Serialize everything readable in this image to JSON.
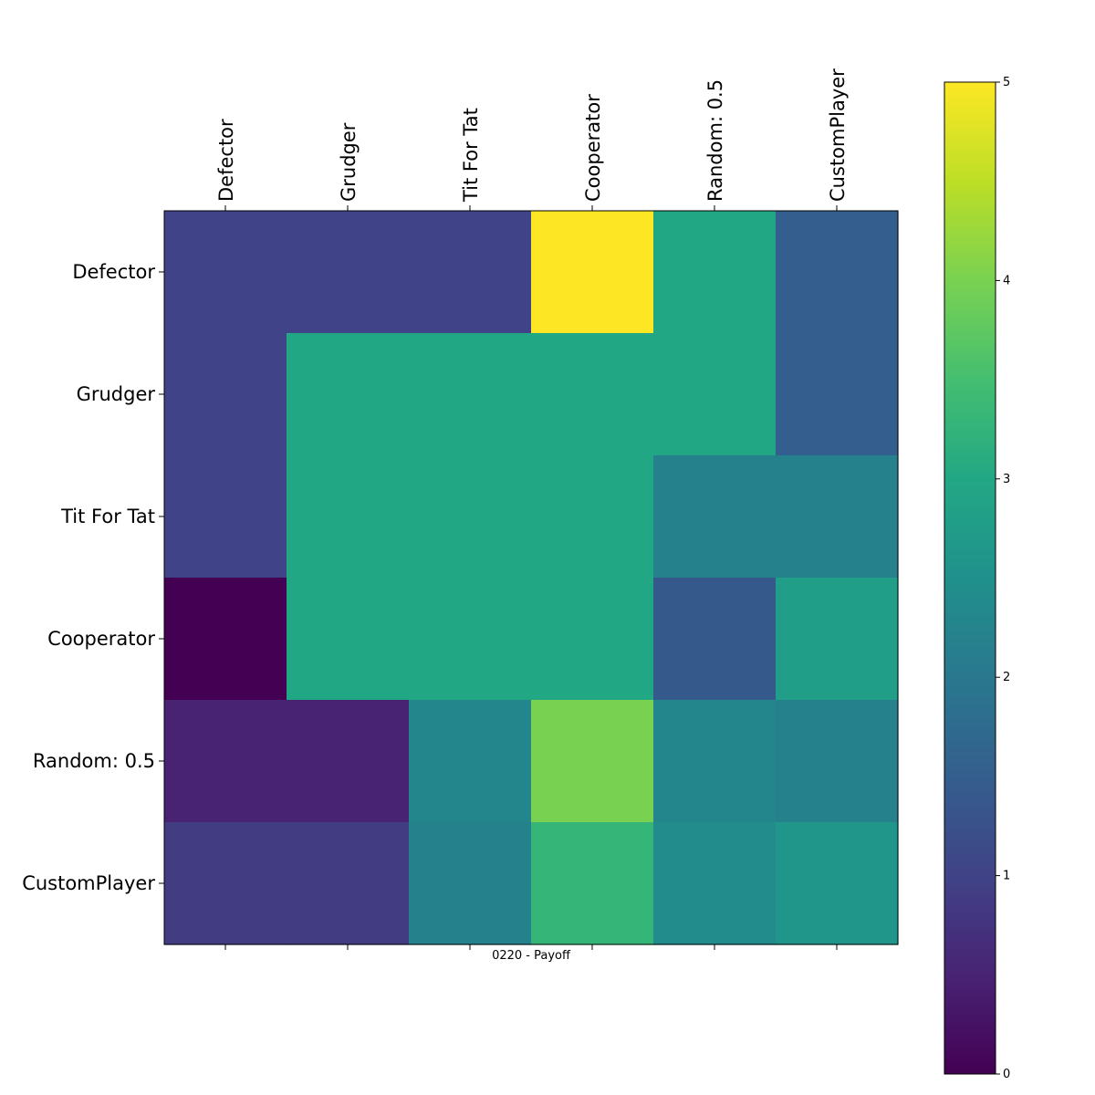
{
  "chart_data": {
    "type": "heatmap",
    "title": "",
    "xlabel": "0220 - Payoff",
    "ylabel": "",
    "x_categories": [
      "Defector",
      "Grudger",
      "Tit For Tat",
      "Cooperator",
      "Random: 0.5",
      "CustomPlayer"
    ],
    "y_categories": [
      "Defector",
      "Grudger",
      "Tit For Tat",
      "Cooperator",
      "Random: 0.5",
      "CustomPlayer"
    ],
    "values": [
      [
        1.0,
        1.0,
        1.0,
        5.0,
        3.0,
        1.5
      ],
      [
        1.0,
        3.0,
        3.0,
        3.0,
        3.0,
        1.5
      ],
      [
        1.0,
        3.0,
        3.0,
        3.0,
        2.2,
        2.2
      ],
      [
        0.0,
        3.0,
        3.0,
        3.0,
        1.4,
        2.8
      ],
      [
        0.5,
        0.5,
        2.3,
        4.0,
        2.3,
        2.2
      ],
      [
        0.9,
        0.9,
        2.2,
        3.3,
        2.4,
        2.6
      ]
    ],
    "colormap": "viridis",
    "vmin": 0,
    "vmax": 5,
    "colorbar": {
      "ticks": [
        0,
        1,
        2,
        3,
        4,
        5
      ],
      "tick_labels": [
        "0",
        "1",
        "2",
        "3",
        "4",
        "5"
      ],
      "placement": "right"
    },
    "grid": false
  }
}
